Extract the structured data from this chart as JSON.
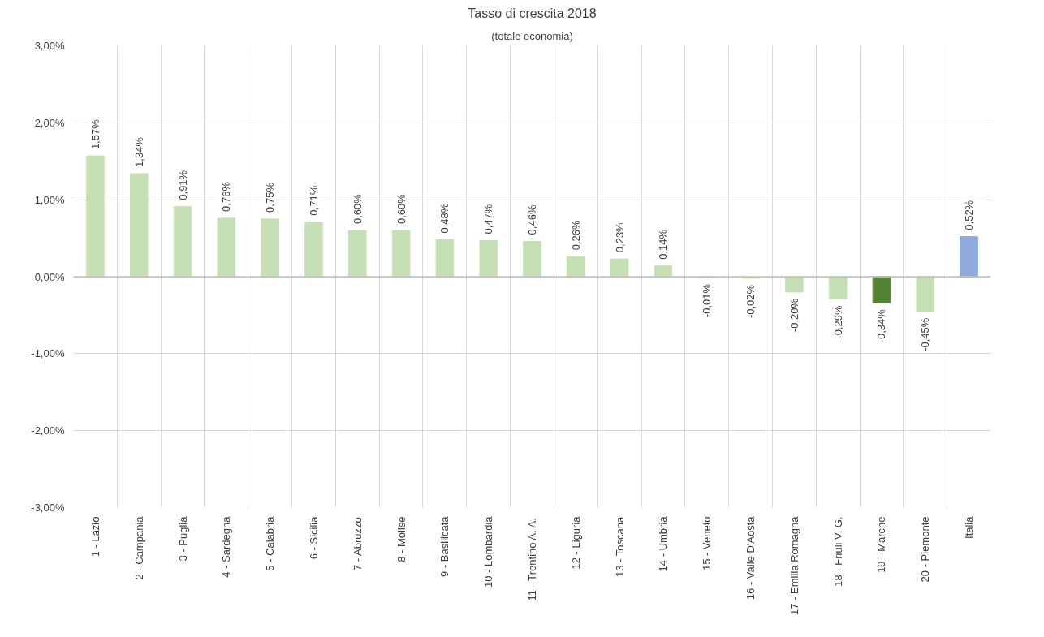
{
  "chart_data": {
    "type": "bar",
    "title": "Tasso di crescita 2018",
    "subtitle": "(totale economia)",
    "categories": [
      "1 - Lazio",
      "2 - Campania",
      "3 - Puglia",
      "4 - Sardegna",
      "5 - Calabria",
      "6 - Sicilia",
      "7 - Abruzzo",
      "8 - Molise",
      "9 - Basilicata",
      "10 - Lombardia",
      "11 - Trentino A. A.",
      "12 - Liguria",
      "13 - Toscana",
      "14 - Umbria",
      "15 - Veneto",
      "16 - Valle D'Aosta",
      "17 - Emilia Romagna",
      "18 - Friuli V. G.",
      "19 - Marche",
      "20 - Piemonte",
      "Italia"
    ],
    "values": [
      1.57,
      1.34,
      0.91,
      0.76,
      0.75,
      0.71,
      0.6,
      0.6,
      0.48,
      0.47,
      0.46,
      0.26,
      0.23,
      0.14,
      -0.01,
      -0.02,
      -0.2,
      -0.29,
      -0.34,
      -0.45,
      0.52
    ],
    "colors": [
      "#c5e0b4",
      "#c5e0b4",
      "#c5e0b4",
      "#c5e0b4",
      "#c5e0b4",
      "#c5e0b4",
      "#c5e0b4",
      "#c5e0b4",
      "#c5e0b4",
      "#c5e0b4",
      "#c5e0b4",
      "#c5e0b4",
      "#c5e0b4",
      "#c5e0b4",
      "#c5e0b4",
      "#c5e0b4",
      "#c5e0b4",
      "#c5e0b4",
      "#548235",
      "#c5e0b4",
      "#8faadc"
    ],
    "value_labels": [
      "1,57%",
      "1,34%",
      "0,91%",
      "0,76%",
      "0,75%",
      "0,71%",
      "0,60%",
      "0,60%",
      "0,48%",
      "0,47%",
      "0,46%",
      "0,26%",
      "0,23%",
      "0,14%",
      "-0,01%",
      "-0,02%",
      "-0,20%",
      "-0,29%",
      "-0,34%",
      "-0,45%",
      "0,52%"
    ],
    "ylim": [
      -3,
      3
    ],
    "yticks": [
      {
        "value": -3,
        "label": "-3,00%"
      },
      {
        "value": -2,
        "label": "-2,00%"
      },
      {
        "value": -1,
        "label": "-1,00%"
      },
      {
        "value": 0,
        "label": "0,00%"
      },
      {
        "value": 1,
        "label": "1,00%"
      },
      {
        "value": 2,
        "label": "2,00%"
      },
      {
        "value": 3,
        "label": "3,00%"
      }
    ],
    "grid": true
  }
}
